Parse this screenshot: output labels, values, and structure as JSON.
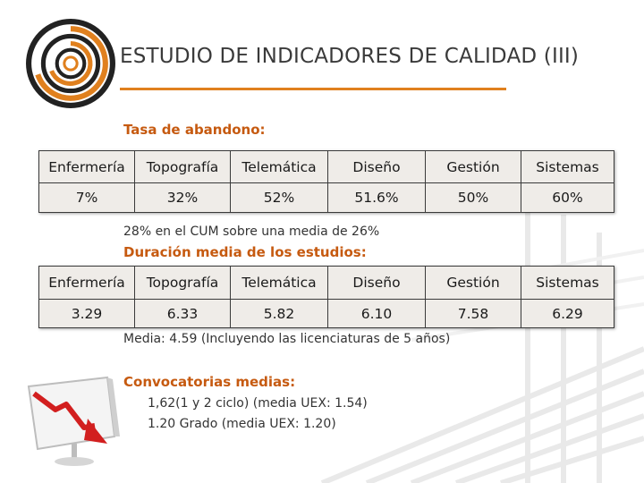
{
  "title": "ESTUDIO DE INDICADORES DE CALIDAD (III)",
  "colors": {
    "accent_orange": "#e0801e",
    "label_orange": "#c65a10",
    "table_bg": "#efece8"
  },
  "abandono": {
    "label": "Tasa de abandono:",
    "headers": [
      "Enfermería",
      "Topografía",
      "Telemática",
      "Diseño",
      "Gestión",
      "Sistemas"
    ],
    "values": [
      "7%",
      "32%",
      "52%",
      "51.6%",
      "50%",
      "60%"
    ],
    "note": "28% en el CUM sobre una media de 26%"
  },
  "duracion": {
    "label": "Duración media de los estudios:",
    "headers": [
      "Enfermería",
      "Topografía",
      "Telemática",
      "Diseño",
      "Gestión",
      "Sistemas"
    ],
    "values": [
      "3.29",
      "6.33",
      "5.82",
      "6.10",
      "7.58",
      "6.29"
    ],
    "note": "Media: 4.59 (Incluyendo las licenciaturas de 5 años)"
  },
  "convocatorias": {
    "label": "Convocatorias medias:",
    "lines": [
      "1,62(1 y 2 ciclo) (media UEX: 1.54)",
      "1.20 Grado (media UEX: 1.20)"
    ]
  },
  "icons": {
    "logo": "concentric-rings-logo-icon",
    "chart": "declining-chart-icon"
  }
}
